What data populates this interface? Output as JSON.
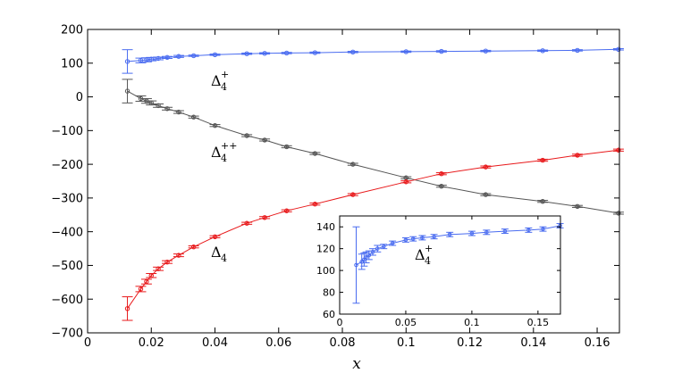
{
  "chart_data": [
    {
      "type": "line",
      "xlabel": "x",
      "ylabel": "",
      "xlim": [
        0,
        0.167
      ],
      "ylim": [
        -700,
        200
      ],
      "xticks": [
        0,
        0.02,
        0.04,
        0.06,
        0.08,
        0.1,
        0.12,
        0.14,
        0.16
      ],
      "xtick_labels": [
        "0",
        "0.02",
        "0.04",
        "0.06",
        "0.08",
        "0.1",
        "0.12",
        "0.14",
        "0.16"
      ],
      "yticks": [
        200,
        100,
        0,
        -100,
        -200,
        -300,
        -400,
        -500,
        -600,
        -700
      ],
      "ytick_labels": [
        "200",
        "100",
        "0",
        "−100",
        "−200",
        "−300",
        "−400",
        "−500",
        "−600",
        "−700"
      ],
      "grid": false,
      "series": [
        {
          "key": "d4plus",
          "color": "#4a6cf0",
          "x": [
            0.0125,
            0.0167,
            0.0185,
            0.02,
            0.0222,
            0.025,
            0.0286,
            0.0333,
            0.04,
            0.05,
            0.0556,
            0.0625,
            0.0714,
            0.0833,
            0.1,
            0.1111,
            0.125,
            0.1429,
            0.1538,
            0.1667
          ],
          "y": [
            105,
            108,
            110,
            112,
            114,
            117,
            120,
            122,
            125,
            128,
            129,
            130,
            131,
            133,
            134,
            135,
            136,
            137,
            138,
            141
          ],
          "err": [
            35,
            7,
            6,
            5,
            4,
            3,
            3,
            2,
            2,
            2,
            2,
            2,
            2,
            2,
            2,
            2,
            2,
            2,
            2,
            2
          ]
        },
        {
          "key": "d4pp",
          "color": "#555555",
          "x": [
            0.0125,
            0.0167,
            0.0185,
            0.02,
            0.0222,
            0.025,
            0.0286,
            0.0333,
            0.04,
            0.05,
            0.0556,
            0.0625,
            0.0714,
            0.0833,
            0.1,
            0.1111,
            0.125,
            0.1429,
            0.1538,
            0.1667
          ],
          "y": [
            17,
            -5,
            -12,
            -18,
            -26,
            -35,
            -45,
            -60,
            -85,
            -115,
            -128,
            -148,
            -168,
            -200,
            -240,
            -265,
            -290,
            -310,
            -325,
            -345
          ],
          "err": [
            35,
            8,
            7,
            6,
            5,
            4,
            4,
            3,
            3,
            3,
            3,
            3,
            3,
            3,
            3,
            3,
            3,
            3,
            3,
            3
          ]
        },
        {
          "key": "d4",
          "color": "#e8191b",
          "x": [
            0.0125,
            0.0167,
            0.0185,
            0.02,
            0.0222,
            0.025,
            0.0286,
            0.0333,
            0.04,
            0.05,
            0.0556,
            0.0625,
            0.0714,
            0.0833,
            0.1,
            0.1111,
            0.125,
            0.1429,
            0.1538,
            0.1667
          ],
          "y": [
            -628,
            -570,
            -548,
            -530,
            -510,
            -490,
            -470,
            -445,
            -415,
            -375,
            -358,
            -338,
            -318,
            -290,
            -252,
            -228,
            -208,
            -188,
            -173,
            -158
          ],
          "err": [
            35,
            8,
            7,
            6,
            5,
            4,
            4,
            3,
            3,
            3,
            3,
            3,
            3,
            3,
            3,
            3,
            3,
            3,
            3,
            3
          ]
        }
      ],
      "annotations": [
        {
          "key": "d4plus",
          "base": "Δ",
          "sub": "4",
          "sup": "+"
        },
        {
          "key": "d4pp",
          "base": "Δ",
          "sub": "4",
          "sup": "++"
        },
        {
          "key": "d4",
          "base": "Δ",
          "sub": "4",
          "sup": ""
        }
      ]
    },
    {
      "type": "line",
      "role": "inset",
      "xlabel": "",
      "ylabel": "",
      "xlim": [
        0,
        0.167
      ],
      "ylim": [
        60,
        150
      ],
      "xticks": [
        0,
        0.05,
        0.1,
        0.15
      ],
      "xtick_labels": [
        "0",
        "0.05",
        "0.1",
        "0.15"
      ],
      "yticks": [
        140,
        120,
        100,
        80,
        60
      ],
      "ytick_labels": [
        "140",
        "120",
        "100",
        "80",
        "60"
      ],
      "series": [
        {
          "key": "d4plus",
          "color": "#4a6cf0",
          "x": [
            0.0125,
            0.0167,
            0.0185,
            0.02,
            0.0222,
            0.025,
            0.0286,
            0.0333,
            0.04,
            0.05,
            0.0556,
            0.0625,
            0.0714,
            0.0833,
            0.1,
            0.1111,
            0.125,
            0.1429,
            0.1538,
            0.1667
          ],
          "y": [
            105,
            108,
            110,
            112,
            114,
            117,
            120,
            122,
            125,
            128,
            129,
            130,
            131,
            133,
            134,
            135,
            136,
            137,
            138,
            141
          ],
          "err": [
            35,
            7,
            6,
            5,
            4,
            3,
            3,
            2,
            2,
            2,
            2,
            2,
            2,
            2,
            2,
            2,
            2,
            2,
            2,
            2
          ]
        }
      ],
      "annotations": [
        {
          "key": "d4plus",
          "base": "Δ",
          "sub": "4",
          "sup": "+"
        }
      ]
    }
  ]
}
